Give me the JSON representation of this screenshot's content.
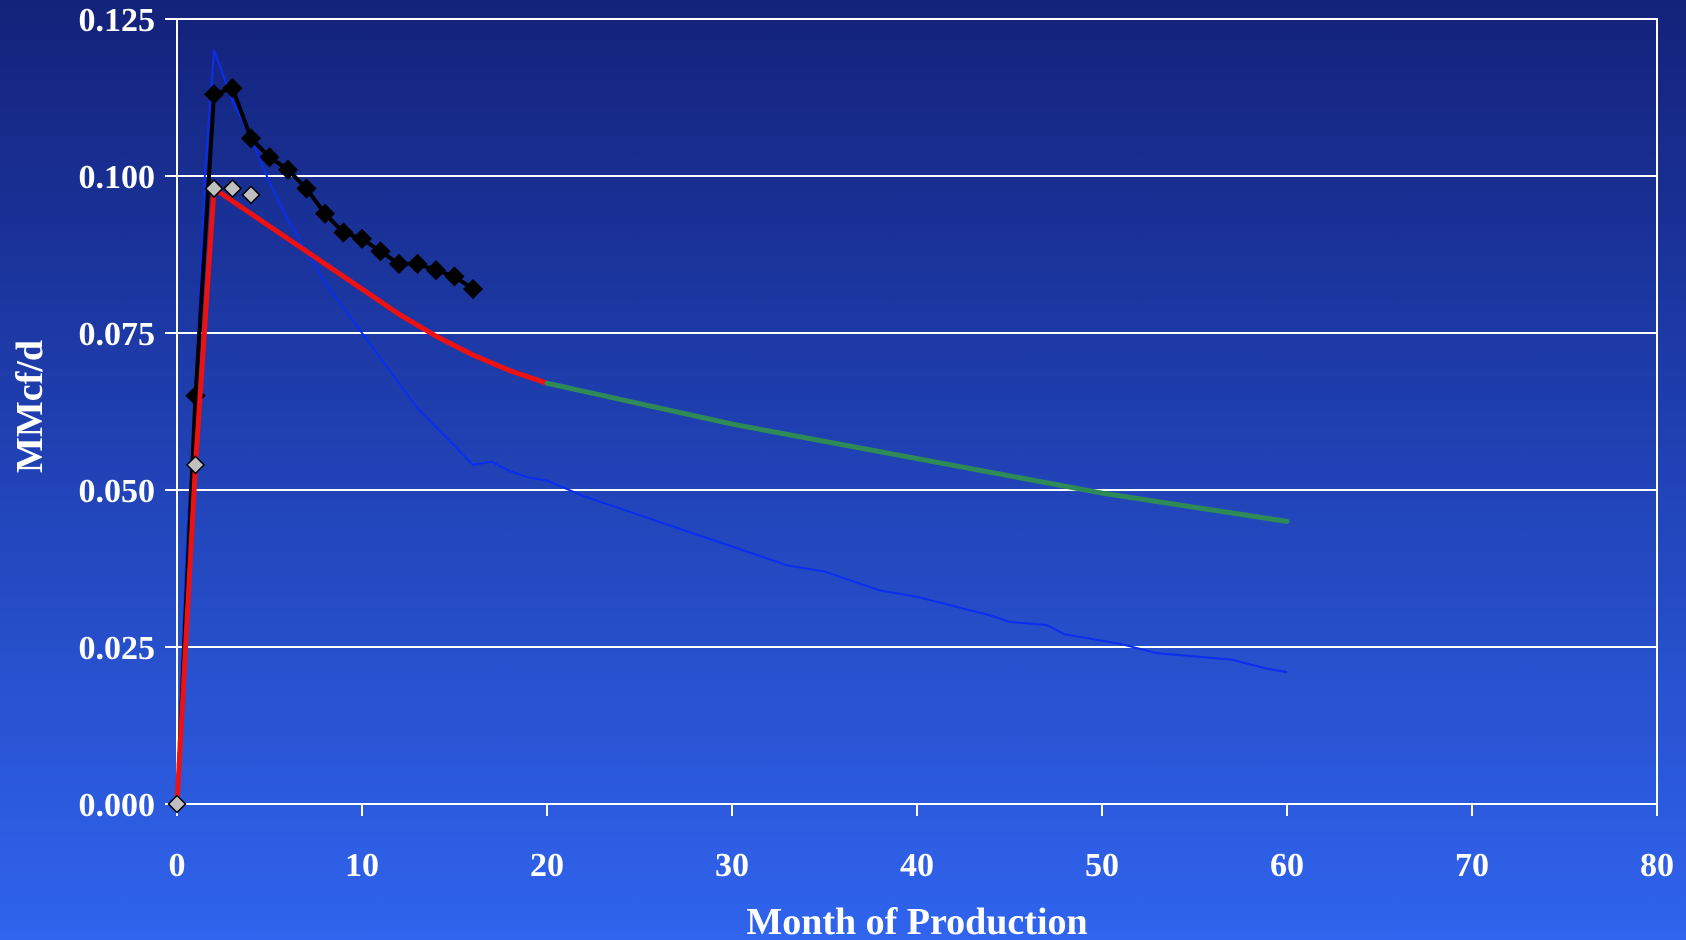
{
  "chart_data": {
    "type": "line",
    "title": "",
    "xlabel": "Month of Production",
    "ylabel": "MMcf/d",
    "xlim": [
      0,
      80
    ],
    "ylim": [
      0,
      0.125
    ],
    "x_ticks": [
      "0",
      "10",
      "20",
      "30",
      "40",
      "50",
      "60",
      "70",
      "80"
    ],
    "y_ticks": [
      "0.000",
      "0.025",
      "0.050",
      "0.075",
      "0.100",
      "0.125"
    ],
    "grid": "horizontal",
    "legend": "none",
    "series": [
      {
        "color": "#0a2df0",
        "style": "thin-line",
        "x": [
          0,
          0.5,
          1,
          1.5,
          2,
          2.5,
          3,
          4,
          5,
          6,
          7,
          8,
          9,
          10,
          11,
          12,
          13,
          14,
          15,
          16,
          17,
          18,
          19,
          20,
          22,
          24,
          26,
          28,
          30,
          32,
          33,
          35,
          37,
          38,
          40,
          42,
          44,
          45,
          47,
          48,
          50,
          51,
          53,
          55,
          57,
          59,
          60
        ],
        "y": [
          0,
          0.04,
          0.065,
          0.1,
          0.12,
          0.116,
          0.112,
          0.106,
          0.099,
          0.093,
          0.088,
          0.083,
          0.079,
          0.075,
          0.071,
          0.067,
          0.063,
          0.06,
          0.057,
          0.054,
          0.0545,
          0.053,
          0.052,
          0.0515,
          0.049,
          0.047,
          0.045,
          0.043,
          0.041,
          0.039,
          0.038,
          0.037,
          0.035,
          0.034,
          0.033,
          0.0315,
          0.03,
          0.029,
          0.0285,
          0.027,
          0.026,
          0.0255,
          0.024,
          0.0235,
          0.023,
          0.0215,
          0.021
        ]
      },
      {
        "color": "#000000",
        "style": "line-diamond",
        "x": [
          0,
          1,
          2,
          3,
          4,
          5,
          6,
          7,
          8,
          9,
          10,
          11,
          12,
          13,
          14,
          15,
          16
        ],
        "y": [
          0,
          0.065,
          0.113,
          0.114,
          0.106,
          0.103,
          0.101,
          0.098,
          0.094,
          0.091,
          0.09,
          0.088,
          0.086,
          0.086,
          0.085,
          0.084,
          0.082
        ]
      },
      {
        "color": "#ee1111",
        "style": "thick-line",
        "x": [
          0,
          1,
          2,
          2.5,
          4,
          6,
          8,
          10,
          12,
          14,
          16,
          18,
          20
        ],
        "y": [
          0,
          0.054,
          0.098,
          0.097,
          0.094,
          0.09,
          0.086,
          0.082,
          0.078,
          0.0745,
          0.0715,
          0.069,
          0.067
        ]
      },
      {
        "color": "#2e8b57",
        "style": "thick-line",
        "x": [
          20,
          30,
          40,
          50,
          60
        ],
        "y": [
          0.067,
          0.0605,
          0.055,
          0.0495,
          0.045
        ]
      },
      {
        "color": "#c0c0c0",
        "style": "markers-diamond",
        "x": [
          0,
          1,
          2,
          3,
          4
        ],
        "y": [
          0,
          0.054,
          0.098,
          0.098,
          0.097
        ]
      }
    ]
  }
}
